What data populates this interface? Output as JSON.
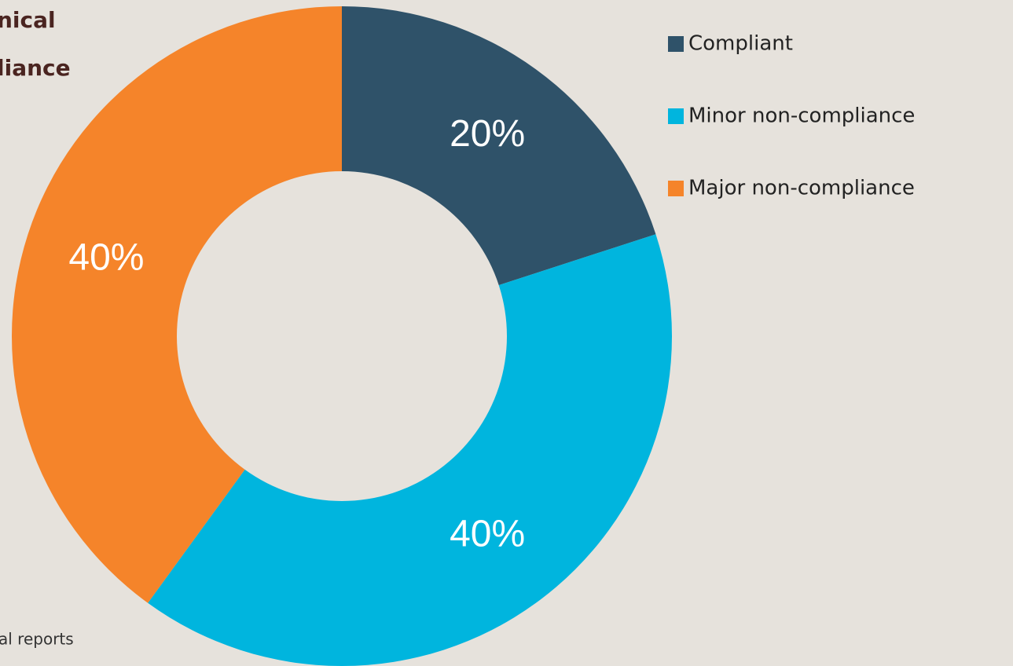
{
  "chart_data": {
    "type": "donut",
    "title_lines": [
      "nical",
      "liance"
    ],
    "source": "al reports",
    "categories": [
      "Compliant",
      "Minor non-compliance",
      "Major non-compliance"
    ],
    "values": [
      20,
      40,
      40
    ],
    "value_labels": [
      "20%",
      "40%",
      "40%"
    ],
    "colors": [
      "#2f5269",
      "#00b5de",
      "#f5842a"
    ],
    "legend": "right"
  }
}
